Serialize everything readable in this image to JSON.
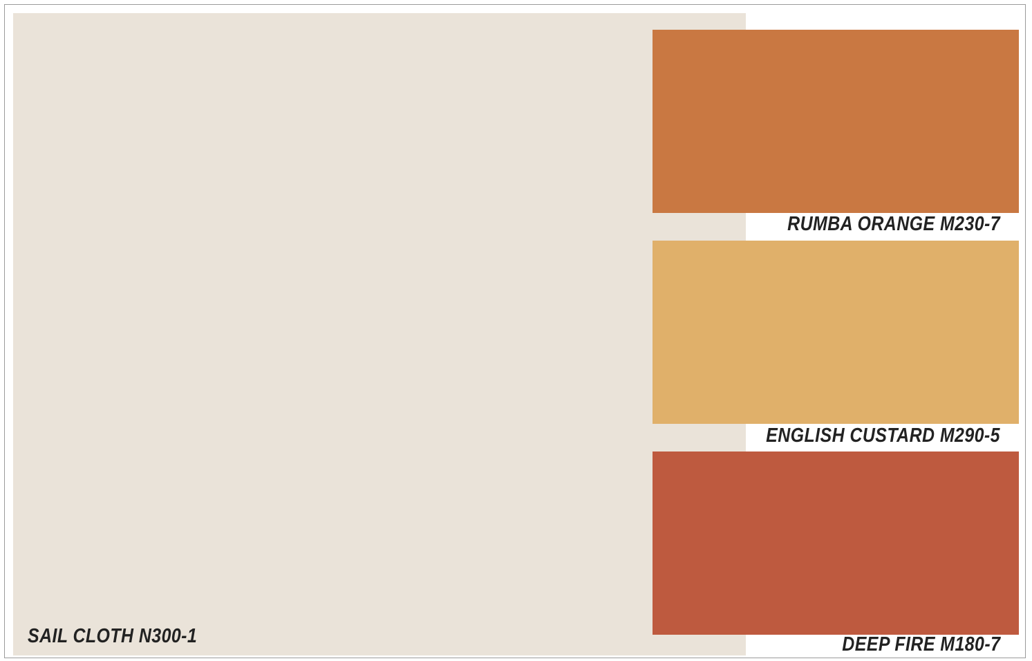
{
  "palette": {
    "main": {
      "name": "SAIL CLOTH N300-1",
      "color": "#EAE3D9"
    },
    "accents": [
      {
        "name": "RUMBA ORANGE M230-7",
        "color": "#C97842"
      },
      {
        "name": "ENGLISH CUSTARD M290-5",
        "color": "#E0B06A"
      },
      {
        "name": "DEEP FIRE M180-7",
        "color": "#BE5A3F"
      }
    ]
  }
}
